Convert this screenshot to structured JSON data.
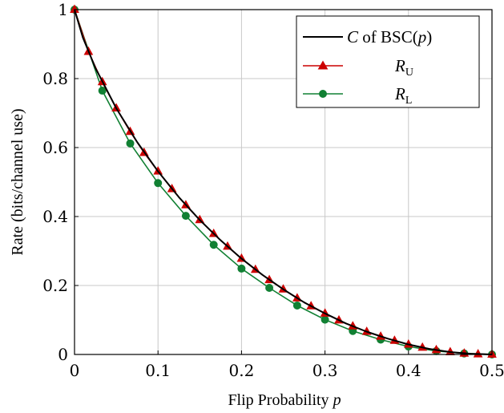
{
  "chart_data": {
    "type": "line",
    "xlabel": "Flip Probability",
    "xlabel_var": "p",
    "ylabel": "Rate (bits/channel use)",
    "xlim": [
      0,
      0.5
    ],
    "ylim": [
      0,
      1
    ],
    "xticks": [
      "0",
      "0.1",
      "0.2",
      "0.3",
      "0.4",
      "0.5"
    ],
    "yticks": [
      "0",
      "0.2",
      "0.4",
      "0.6",
      "0.8",
      "1"
    ],
    "grid": true,
    "legend_position": "top-right",
    "legend": {
      "capacity": {
        "var": "C",
        "mid": "of",
        "func": "BSC(",
        "arg": "p",
        "close": ")"
      },
      "upper": {
        "var": "R",
        "sub": "U"
      },
      "lower": {
        "var": "R",
        "sub": "L"
      }
    },
    "series": [
      {
        "name": "C of BSC(p)",
        "color": "#000000",
        "marker": "none",
        "x": [
          0,
          0.01,
          0.025,
          0.05,
          0.075,
          0.1,
          0.125,
          0.15,
          0.175,
          0.2,
          0.225,
          0.25,
          0.275,
          0.3,
          0.325,
          0.35,
          0.375,
          0.4,
          0.425,
          0.45,
          0.475,
          0.5
        ],
        "y": [
          1,
          0.919,
          0.831,
          0.714,
          0.616,
          0.531,
          0.456,
          0.39,
          0.331,
          0.278,
          0.231,
          0.189,
          0.151,
          0.119,
          0.09,
          0.066,
          0.046,
          0.029,
          0.016,
          0.007,
          0.002,
          0
        ]
      },
      {
        "name": "R_U",
        "color": "#cc0000",
        "marker": "triangle",
        "x": [
          0,
          0.0167,
          0.0333,
          0.05,
          0.0667,
          0.0833,
          0.1,
          0.1167,
          0.1333,
          0.15,
          0.1667,
          0.1833,
          0.2,
          0.2167,
          0.2333,
          0.25,
          0.2667,
          0.2833,
          0.3,
          0.3167,
          0.3333,
          0.35,
          0.3667,
          0.3833,
          0.4,
          0.4167,
          0.4333,
          0.45,
          0.4667,
          0.4833,
          0.5
        ],
        "y": [
          1,
          0.878,
          0.79,
          0.714,
          0.646,
          0.585,
          0.531,
          0.48,
          0.433,
          0.39,
          0.35,
          0.313,
          0.278,
          0.246,
          0.216,
          0.189,
          0.163,
          0.14,
          0.119,
          0.099,
          0.082,
          0.066,
          0.052,
          0.04,
          0.029,
          0.02,
          0.013,
          0.007,
          0.003,
          0.001,
          0
        ]
      },
      {
        "name": "R_L",
        "color": "#118033",
        "marker": "circle",
        "x": [
          0,
          0.0333,
          0.0667,
          0.1,
          0.1333,
          0.1667,
          0.2,
          0.2333,
          0.2667,
          0.3,
          0.3333,
          0.3667,
          0.4,
          0.4333,
          0.4667,
          0.5
        ],
        "y": [
          1,
          0.765,
          0.612,
          0.497,
          0.402,
          0.318,
          0.249,
          0.193,
          0.142,
          0.101,
          0.068,
          0.043,
          0.023,
          0.01,
          0.003,
          0
        ]
      }
    ]
  }
}
